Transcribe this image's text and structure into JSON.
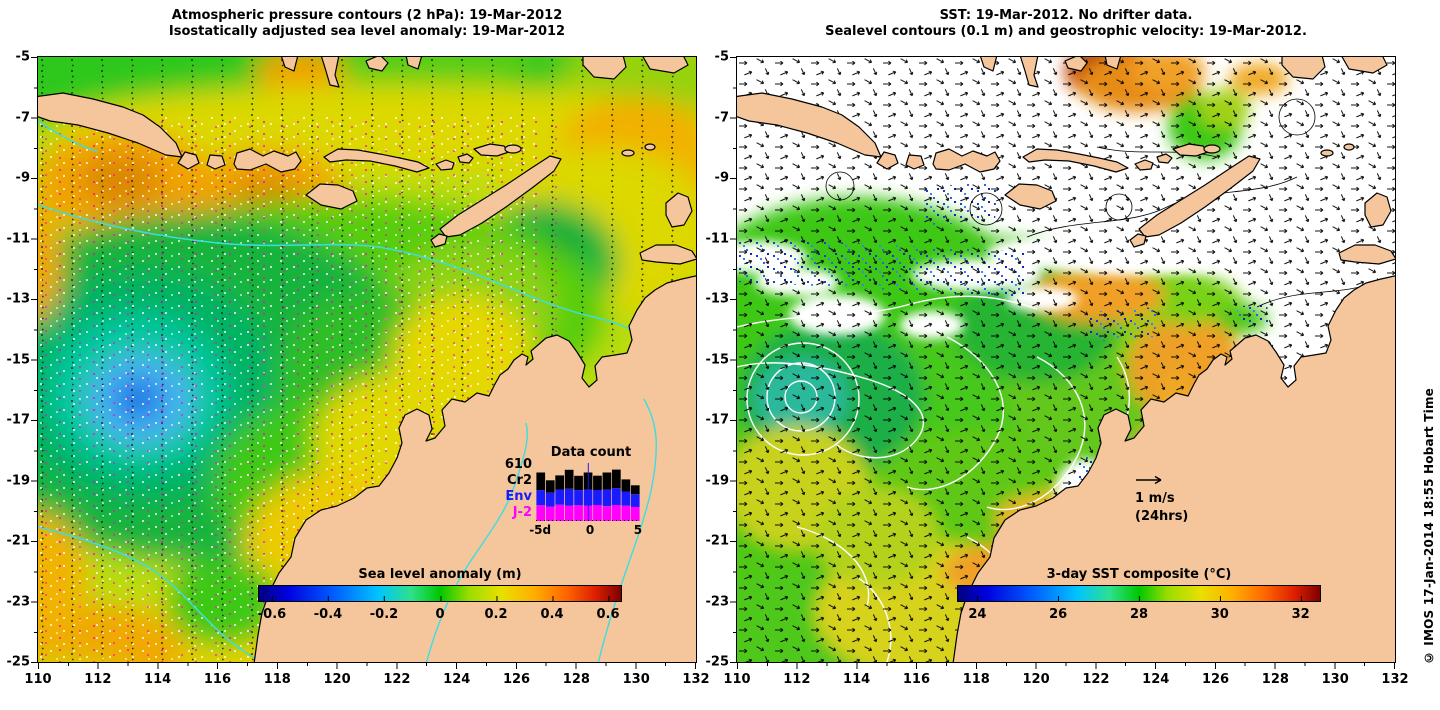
{
  "panels": {
    "left": {
      "title_line1": "Atmospheric pressure contours (2 hPa): 19-Mar-2012",
      "title_line2": "Isostatically adjusted sea level anomaly: 19-Mar-2012",
      "colorbar": {
        "label": "Sea level anomaly (m)",
        "ticks": [
          "-0.6",
          "-0.4",
          "-0.2",
          "0",
          "0.2",
          "0.4",
          "0.6"
        ]
      },
      "inset": {
        "title": "Data count",
        "y_axis_top_label": "610",
        "series_labels": {
          "cr2": "Cr2",
          "env": "Env",
          "j2": "J-2"
        },
        "x_ticks": [
          "-5d",
          "0",
          "5"
        ]
      }
    },
    "right": {
      "title_line1": "SST: 19-Mar-2012. No drifter data.",
      "title_line2": "Sealevel contours (0.1 m) and geostrophic velocity: 19-Mar-2012.",
      "colorbar": {
        "label": "3-day SST composite (°C)",
        "ticks": [
          "24",
          "26",
          "28",
          "30",
          "32"
        ]
      },
      "velocity_legend": {
        "speed": "1 m/s",
        "period": "(24hrs)"
      }
    }
  },
  "axes": {
    "x_ticks": [
      "110",
      "112",
      "114",
      "116",
      "118",
      "120",
      "122",
      "124",
      "126",
      "128",
      "130",
      "132"
    ],
    "y_ticks": [
      "-5",
      "-7",
      "-9",
      "-11",
      "-13",
      "-15",
      "-17",
      "-19",
      "-21",
      "-23",
      "-25"
    ]
  },
  "watermark": "© IMOS 17-Jan-2014 18:55 Hobart Time",
  "colors": {
    "land": "#f5c69b",
    "coastline": "#000000",
    "bathy_line": "#3cdde2",
    "env_label": "#1a1aff",
    "j2_label": "#ff00ff",
    "sla_low_core": "#1e78e6",
    "sla_high_core": "#dc8800",
    "sst_warm_core": "#a01e00"
  },
  "chart_data": [
    {
      "id": "sla_map",
      "type": "heatmap",
      "title": "Isostatically adjusted sea level anomaly: 19-Mar-2012",
      "x_range_deg_east": [
        110,
        132
      ],
      "y_range_deg_north": [
        -25,
        -5
      ],
      "colorbar_label": "Sea level anomaly (m)",
      "colorbar_range": [
        -0.65,
        0.65
      ],
      "colorbar_ticks": [
        -0.6,
        -0.4,
        -0.2,
        0,
        0.2,
        0.4,
        0.6
      ],
      "overlays": [
        "atmospheric pressure contours (2 hPa, dotted)",
        "altimeter ground-track data points"
      ],
      "features": [
        {
          "name": "sea level low",
          "lon": 112.4,
          "lat": -15.7,
          "value_m": -0.35
        },
        {
          "name": "sea level high",
          "lon": 112.8,
          "lat": -9.1,
          "value_m": 0.25
        },
        {
          "name": "sea level high",
          "lon": 117.6,
          "lat": -9.6,
          "value_m": 0.25
        },
        {
          "name": "sea level low",
          "lon": 126.8,
          "lat": -11.7,
          "value_m": -0.15
        },
        {
          "name": "coastal high band NW shelf",
          "lon": 120.0,
          "lat": -17.5,
          "value_m": 0.2
        }
      ]
    },
    {
      "id": "data_count",
      "type": "bar",
      "stacked": true,
      "title": "Data count",
      "x_ticks": [
        "-5d",
        "0",
        "5"
      ],
      "x_range_days": [
        -5.5,
        5.5
      ],
      "y_axis_top": 610,
      "series": [
        {
          "name": "J-2",
          "color": "#ff00ff",
          "values": [
            165,
            150,
            170,
            160,
            165,
            160,
            168,
            155,
            168,
            160,
            148
          ]
        },
        {
          "name": "Env",
          "color": "#1a1aff",
          "values": [
            160,
            148,
            162,
            178,
            160,
            170,
            158,
            175,
            178,
            150,
            132
          ]
        },
        {
          "name": "Cr2",
          "color": "#000000",
          "values": [
            185,
            130,
            148,
            200,
            150,
            180,
            150,
            180,
            195,
            128,
            95
          ]
        }
      ]
    },
    {
      "id": "sst_map",
      "type": "heatmap",
      "title": "3-day SST composite: 19-Mar-2012",
      "x_range_deg_east": [
        110,
        132
      ],
      "y_range_deg_north": [
        -25,
        -5
      ],
      "colorbar_label": "3-day SST composite (°C)",
      "colorbar_range": [
        23.5,
        32.5
      ],
      "colorbar_ticks": [
        24,
        26,
        28,
        30,
        32
      ],
      "overlays": [
        "geostrophic velocity vectors (scale 1 m/s, 24hrs)",
        "sealevel contours (0.1 m)"
      ],
      "features": [
        {
          "name": "warm plume Banda Sea",
          "lon": 122.2,
          "lat": -5.4,
          "value_c": 32
        },
        {
          "name": "cool eddy",
          "lon": 112.1,
          "lat": -16.2,
          "value_c": 26.5
        },
        {
          "name": "warm shelf water",
          "lon": 121.0,
          "lat": -13.0,
          "value_c": 29.5
        },
        {
          "name": "warm Kimberley coastal water",
          "lon": 124.5,
          "lat": -15.5,
          "value_c": 30
        },
        {
          "name": "no-data (cloud) areas shown white",
          "lon": 118,
          "lat": -11,
          "value_c": null
        }
      ]
    }
  ]
}
